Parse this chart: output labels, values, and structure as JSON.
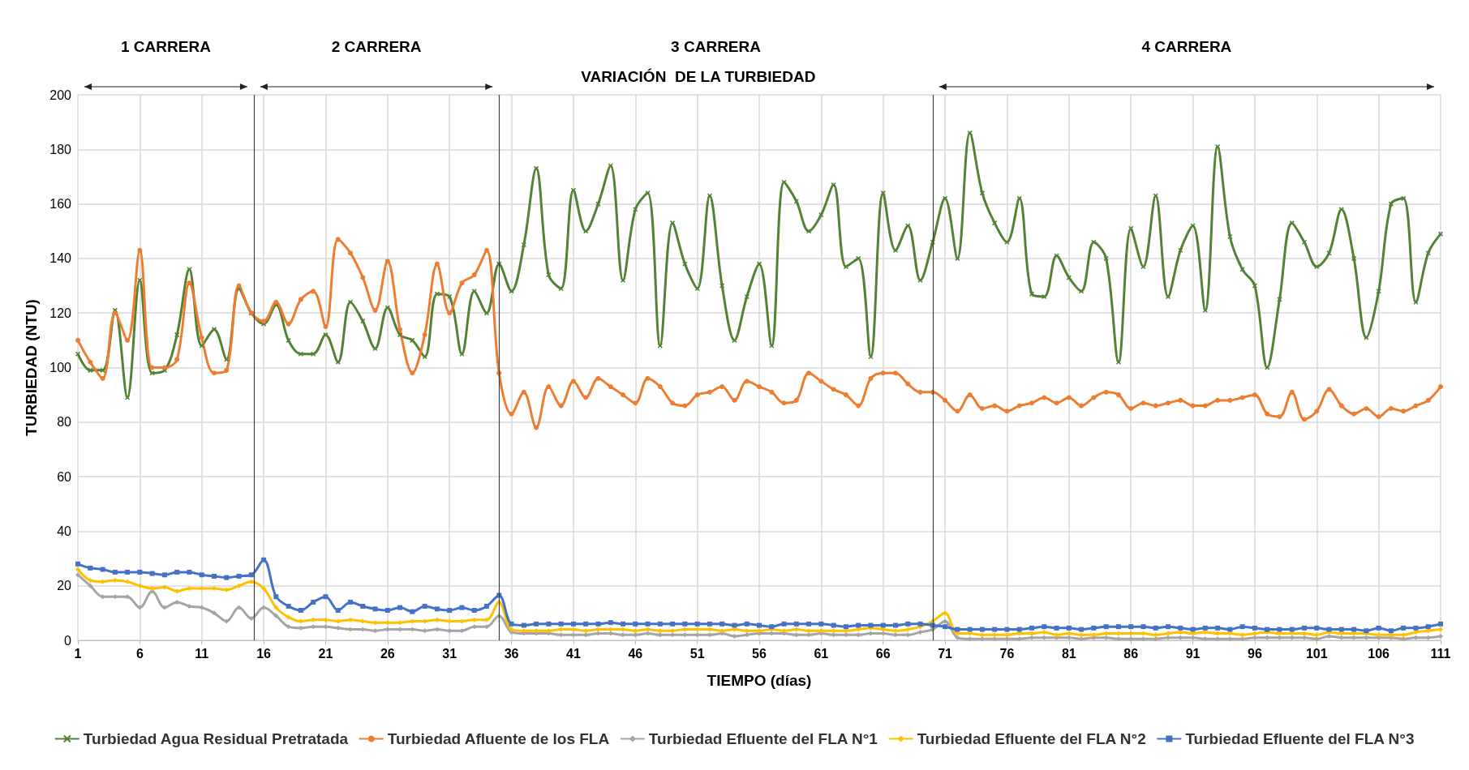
{
  "chart_data": {
    "type": "line",
    "title": "VARIACIÓN  DE LA TURBIEDAD",
    "xlabel": "TIEMPO (días)",
    "ylabel": "TURBIEDAD (NTU)",
    "annotations": [
      "1 CARRERA",
      "2 CARRERA",
      "3 CARRERA",
      "4 CARRERA"
    ],
    "x": [
      1,
      2,
      3,
      4,
      5,
      6,
      7,
      8,
      9,
      10,
      11,
      12,
      13,
      14,
      15,
      16,
      17,
      18,
      19,
      20,
      21,
      22,
      23,
      24,
      25,
      26,
      27,
      28,
      29,
      30,
      31,
      32,
      33,
      34,
      35,
      36,
      37,
      38,
      39,
      40,
      41,
      42,
      43,
      44,
      45,
      46,
      47,
      48,
      49,
      50,
      51,
      52,
      53,
      54,
      55,
      56,
      57,
      58,
      59,
      60,
      61,
      62,
      63,
      64,
      65,
      66,
      67,
      68,
      69,
      70,
      71,
      72,
      73,
      74,
      75,
      76,
      77,
      78,
      79,
      80,
      81,
      82,
      83,
      84,
      85,
      86,
      87,
      88,
      89,
      90,
      91,
      92,
      93,
      94,
      95,
      96,
      97,
      98,
      99,
      100,
      101,
      102,
      103,
      104,
      105,
      106,
      107,
      108,
      109,
      110,
      111
    ],
    "series": [
      {
        "name": "Turbiedad Agua Residual Pretratada",
        "color": "#548235",
        "marker": "cross",
        "values": [
          105,
          99,
          99,
          121,
          89,
          132,
          98,
          99,
          112,
          136,
          108,
          114,
          103,
          129,
          120,
          116,
          123,
          110,
          105,
          105,
          112,
          102,
          124,
          117,
          107,
          122,
          112,
          110,
          104,
          127,
          126,
          105,
          128,
          120,
          138,
          128,
          145,
          173,
          134,
          129,
          165,
          150,
          160,
          174,
          132,
          158,
          164,
          108,
          153,
          138,
          129,
          163,
          130,
          110,
          126,
          138,
          108,
          168,
          161,
          150,
          156,
          167,
          137,
          140,
          104,
          164,
          143,
          152,
          132,
          146,
          162,
          140,
          186,
          164,
          153,
          146,
          162,
          127,
          126,
          141,
          133,
          128,
          146,
          140,
          102,
          151,
          137,
          163,
          126,
          143,
          152,
          121,
          181,
          148,
          136,
          130,
          100,
          125,
          153,
          146,
          137,
          142,
          158,
          140,
          111,
          128,
          160,
          162,
          124,
          142,
          149
        ]
      },
      {
        "name": "Turbiedad Afluente de los FLA",
        "color": "#ed7d31",
        "marker": "circle",
        "values": [
          110,
          102,
          96,
          120,
          110,
          143,
          100,
          100,
          103,
          131,
          111,
          98,
          99,
          130,
          120,
          117,
          124,
          116,
          125,
          128,
          115,
          147,
          142,
          133,
          121,
          139,
          114,
          98,
          112,
          138,
          120,
          131,
          134,
          143,
          98,
          83,
          91,
          78,
          93,
          86,
          95,
          89,
          96,
          93,
          90,
          87,
          96,
          93,
          87,
          86,
          90,
          91,
          93,
          88,
          95,
          93,
          91,
          87,
          88,
          98,
          95,
          92,
          90,
          86,
          96,
          98,
          98,
          94,
          91,
          91,
          88,
          84,
          90,
          85,
          86,
          84,
          86,
          87,
          89,
          87,
          89,
          86,
          89,
          91,
          90,
          85,
          87,
          86,
          87,
          88,
          86,
          86,
          88,
          88,
          89,
          90,
          83,
          82,
          91,
          81,
          84,
          92,
          86,
          83,
          85,
          82,
          85,
          84,
          86,
          88,
          93
        ]
      },
      {
        "name": "Turbiedad Efluente del FLA N°1",
        "color": "#a5a5a5",
        "marker": "diamond",
        "values": [
          24,
          20,
          16,
          16,
          16,
          12,
          18,
          12,
          14,
          12.5,
          12,
          10,
          7,
          12,
          8,
          12,
          9,
          5,
          4.5,
          5,
          5,
          4.5,
          4,
          4,
          3.5,
          4,
          4,
          4,
          3.5,
          4,
          3.5,
          3.5,
          5,
          5,
          9,
          3,
          2.5,
          2.5,
          2.5,
          2,
          2,
          2,
          2.5,
          2.5,
          2,
          2,
          2.5,
          2,
          2,
          2,
          2,
          2,
          2.5,
          1.5,
          2,
          2.5,
          2.5,
          2.5,
          2,
          2,
          2.5,
          2,
          2,
          2,
          2.5,
          2.5,
          2,
          2,
          3,
          4,
          7,
          1,
          0.5,
          0.5,
          0.5,
          0.5,
          0.5,
          1,
          1,
          1,
          1,
          0.5,
          1,
          1,
          0.5,
          0.5,
          0.5,
          0.5,
          1,
          1,
          1,
          0.5,
          0.5,
          0.5,
          0.5,
          1,
          1,
          1,
          1,
          1,
          0.5,
          1.5,
          1,
          1,
          1,
          1,
          1,
          0.5,
          1,
          1,
          1.5
        ]
      },
      {
        "name": "Turbiedad Efluente del FLA N°2",
        "color": "#ffc000",
        "marker": "diamond",
        "values": [
          26,
          22,
          21.5,
          22,
          21.5,
          20,
          19,
          19.5,
          18,
          19,
          19,
          19,
          18.5,
          20,
          21.5,
          19,
          12,
          8.5,
          7,
          7.5,
          7.5,
          7,
          7.5,
          7,
          6.5,
          6.5,
          6.5,
          7,
          7,
          7.5,
          7,
          7,
          7.5,
          7.5,
          14,
          4,
          3.5,
          3.5,
          3.5,
          4,
          4,
          3.5,
          4,
          4,
          4,
          3.5,
          4,
          3.5,
          3.5,
          4,
          4,
          4,
          3.5,
          4,
          3.5,
          3.5,
          4,
          3.5,
          4,
          3.5,
          3.5,
          3.5,
          3.5,
          4,
          4.5,
          4,
          3.5,
          4,
          5,
          7,
          10,
          2.5,
          2.5,
          2,
          2,
          2,
          2.5,
          2.5,
          3,
          2,
          2.5,
          2,
          2,
          2.5,
          2.5,
          2.5,
          2.5,
          2,
          2.5,
          3,
          2.5,
          3,
          2.5,
          2.5,
          2,
          2.5,
          3,
          2.5,
          2.5,
          2.5,
          2,
          3,
          2.5,
          2.5,
          2.5,
          2,
          2,
          2,
          3,
          3.5,
          4
        ]
      },
      {
        "name": "Turbiedad Efluente del FLA N°3",
        "color": "#4472c4",
        "marker": "square",
        "values": [
          28,
          26.5,
          26,
          25,
          25,
          25,
          24.5,
          24,
          25,
          25,
          24,
          23.5,
          23,
          23.5,
          24,
          29.5,
          16,
          12.5,
          11,
          14,
          16,
          11,
          14,
          12.5,
          11.5,
          11,
          12,
          10.5,
          12.5,
          11.5,
          11,
          12,
          11,
          12.5,
          16.5,
          6,
          5.5,
          6,
          6,
          6,
          6,
          6,
          6,
          6.5,
          6,
          6,
          6,
          6,
          6,
          6,
          6,
          6,
          6,
          5.5,
          6,
          5.5,
          5,
          6,
          6,
          6,
          6,
          5.5,
          5,
          5.5,
          5.5,
          5.5,
          5.5,
          6,
          6,
          5.5,
          5,
          4,
          4,
          4,
          4,
          4,
          4,
          4.5,
          5,
          4.5,
          4.5,
          4,
          4.5,
          5,
          5,
          5,
          5,
          4.5,
          5,
          4.5,
          4,
          4.5,
          4.5,
          4,
          5,
          4.5,
          4,
          4,
          4,
          4.5,
          4.5,
          4,
          4,
          4,
          3.5,
          4.5,
          3.5,
          4.5,
          4.5,
          5,
          6
        ]
      }
    ],
    "xlim": [
      1,
      111
    ],
    "xticks": [
      1,
      6,
      11,
      16,
      21,
      26,
      31,
      36,
      41,
      46,
      51,
      56,
      61,
      66,
      71,
      76,
      81,
      86,
      91,
      96,
      101,
      106,
      111
    ],
    "ylim": [
      0,
      200
    ],
    "yticks": [
      0,
      20,
      40,
      60,
      80,
      100,
      120,
      140,
      160,
      180,
      200
    ],
    "ref_lines": [
      {
        "axis": "x",
        "value": 15.2,
        "color": "#404040"
      },
      {
        "axis": "x",
        "value": 35,
        "color": "#404040"
      },
      {
        "axis": "x",
        "value": 70,
        "color": "#404040"
      }
    ],
    "grid": true,
    "legend": "bottom",
    "line_style": "solid"
  }
}
